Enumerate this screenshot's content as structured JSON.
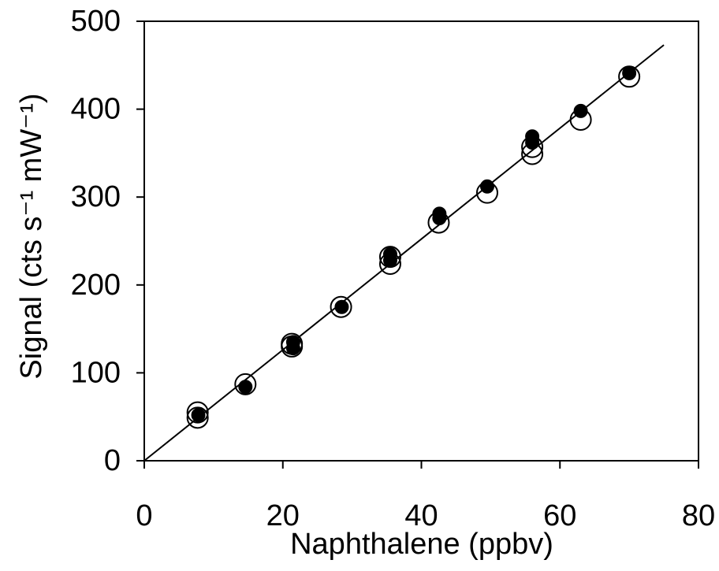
{
  "chart_data": {
    "type": "scatter",
    "xlabel": "Naphthalene  (ppbv)",
    "ylabel": "Signal  (cts s⁻¹ mW⁻¹)",
    "xlim": [
      0,
      80
    ],
    "xticks": [
      0,
      20,
      40,
      60,
      80
    ],
    "ylim": [
      0,
      500
    ],
    "yticks": [
      0,
      100,
      200,
      300,
      400,
      500
    ],
    "series": [
      {
        "marker": "open",
        "color": "#000000",
        "x": [
          7.7,
          7.7,
          14.6,
          21.3,
          21.3,
          28.4,
          35.5,
          35.5,
          42.5,
          49.5,
          56,
          56,
          63,
          70
        ],
        "values": [
          55,
          49,
          87,
          133,
          130,
          175,
          232,
          224,
          271,
          305,
          349,
          357,
          388,
          437
        ]
      },
      {
        "marker": "filled",
        "color": "#000000",
        "x": [
          7.8,
          14.6,
          21.5,
          21.5,
          28.5,
          35.5,
          35.5,
          42.6,
          42.6,
          49.5,
          56,
          56,
          63,
          70
        ],
        "values": [
          52,
          84,
          135,
          128,
          175,
          235,
          228,
          281,
          276,
          312,
          369,
          362,
          398,
          441
        ]
      }
    ],
    "fit_line": {
      "color": "#000000",
      "x": [
        0,
        75
      ],
      "values": [
        0,
        473
      ]
    }
  }
}
